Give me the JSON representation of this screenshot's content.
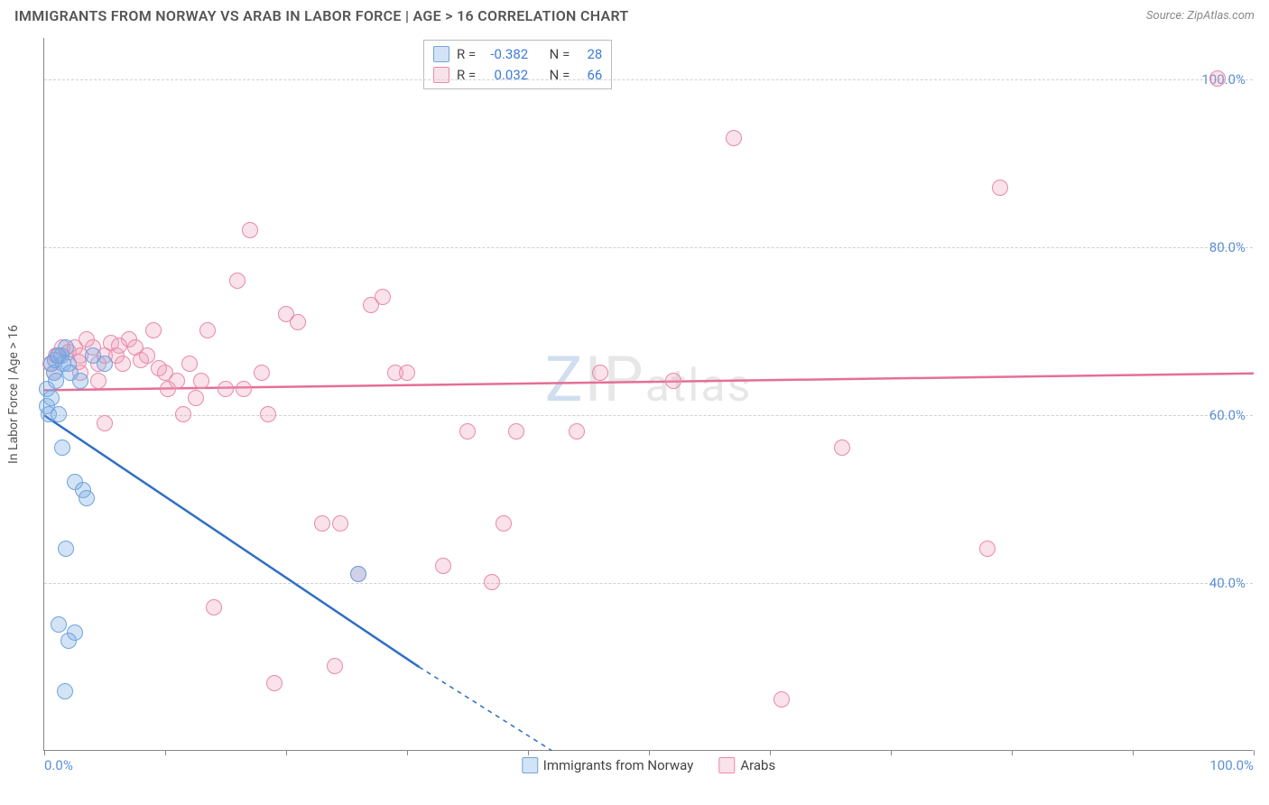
{
  "header": {
    "title": "IMMIGRANTS FROM NORWAY VS ARAB IN LABOR FORCE | AGE > 16 CORRELATION CHART",
    "source": "Source: ZipAtlas.com"
  },
  "chart": {
    "type": "scatter",
    "ylabel": "In Labor Force | Age > 16",
    "background_color": "#ffffff",
    "grid_color": "#d0d0d0",
    "axis_color": "#888888",
    "tick_label_color": "#5b8fd6",
    "tick_fontsize": 15,
    "ylabel_fontsize": 14,
    "ylabel_color": "#555555",
    "xlim": [
      0,
      100
    ],
    "ylim": [
      20,
      105
    ],
    "yticks": [
      40,
      60,
      80,
      100
    ],
    "ytick_labels": [
      "40.0%",
      "60.0%",
      "80.0%",
      "100.0%"
    ],
    "xticks": [
      0,
      10,
      20,
      30,
      40,
      50,
      60,
      70,
      80,
      90,
      100
    ],
    "xtick_labels_shown": {
      "0": "0.0%",
      "100": "100.0%"
    },
    "marker_radius": 9,
    "marker_border_width": 1.5,
    "trend_line_width": 2.5,
    "watermark_text": "ZIPatlas",
    "watermark_z_color": "rgba(120,160,210,0.35)",
    "watermark_rest_color": "rgba(120,120,120,0.18)",
    "watermark_fontsize": 70
  },
  "series": [
    {
      "id": "norway",
      "label": "Immigrants from Norway",
      "fill_color": "rgba(130,175,230,0.35)",
      "border_color": "#6fa3dd",
      "trend_color": "#2f6fc4",
      "R": "-0.382",
      "N": "28",
      "trend": {
        "x1": 0,
        "y1": 60,
        "x2": 31,
        "y2": 30,
        "dash_x2": 42,
        "dash_y2": 20
      },
      "points": [
        [
          0.2,
          61
        ],
        [
          0.2,
          63
        ],
        [
          0.4,
          60
        ],
        [
          0.6,
          62
        ],
        [
          0.6,
          66
        ],
        [
          0.8,
          65
        ],
        [
          1,
          64
        ],
        [
          1.2,
          60
        ],
        [
          1.4,
          67
        ],
        [
          1.6,
          66
        ],
        [
          1.8,
          68
        ],
        [
          2,
          66
        ],
        [
          1.5,
          56
        ],
        [
          1.8,
          44
        ],
        [
          2.5,
          52
        ],
        [
          3.2,
          51
        ],
        [
          3.5,
          50
        ],
        [
          1.2,
          35
        ],
        [
          2.5,
          34
        ],
        [
          2.0,
          33
        ],
        [
          1.7,
          27
        ],
        [
          0.9,
          66.5
        ],
        [
          1.1,
          67
        ],
        [
          2.2,
          65
        ],
        [
          3,
          64
        ],
        [
          4,
          67
        ],
        [
          5,
          66
        ],
        [
          26,
          41
        ]
      ]
    },
    {
      "id": "arabs",
      "label": "Arabs",
      "fill_color": "rgba(240,160,185,0.30)",
      "border_color": "#e88aa8",
      "trend_color": "#e56f95",
      "R": "0.032",
      "N": "66",
      "trend": {
        "x1": 0,
        "y1": 63,
        "x2": 100,
        "y2": 65
      },
      "points": [
        [
          0.5,
          66
        ],
        [
          1,
          67
        ],
        [
          1.5,
          68
        ],
        [
          2,
          67.5
        ],
        [
          2.5,
          68
        ],
        [
          3,
          67
        ],
        [
          3.5,
          69
        ],
        [
          4,
          68
        ],
        [
          4.5,
          66
        ],
        [
          5,
          67
        ],
        [
          5.5,
          68.5
        ],
        [
          6,
          67
        ],
        [
          6.5,
          66
        ],
        [
          7,
          69
        ],
        [
          7.5,
          68
        ],
        [
          8,
          66.5
        ],
        [
          9,
          70
        ],
        [
          10,
          65
        ],
        [
          11,
          64
        ],
        [
          12,
          66
        ],
        [
          13,
          64
        ],
        [
          15,
          63
        ],
        [
          11.5,
          60
        ],
        [
          16,
          76
        ],
        [
          17,
          82
        ],
        [
          18,
          65
        ],
        [
          5,
          59
        ],
        [
          14,
          37
        ],
        [
          20,
          72
        ],
        [
          21,
          71
        ],
        [
          23,
          47
        ],
        [
          24,
          30
        ],
        [
          26,
          41
        ],
        [
          27,
          73
        ],
        [
          28,
          74
        ],
        [
          29,
          65
        ],
        [
          30,
          65
        ],
        [
          33,
          42
        ],
        [
          35,
          58
        ],
        [
          37,
          40
        ],
        [
          38,
          47
        ],
        [
          39,
          58
        ],
        [
          44,
          58
        ],
        [
          46,
          65
        ],
        [
          52,
          64
        ],
        [
          57,
          93
        ],
        [
          61,
          26
        ],
        [
          66,
          56
        ],
        [
          79,
          87
        ],
        [
          78,
          44
        ],
        [
          97,
          100
        ],
        [
          3,
          65
        ],
        [
          4.5,
          64
        ],
        [
          6.2,
          68.2
        ],
        [
          2.8,
          66.3
        ],
        [
          8.5,
          67
        ],
        [
          9.5,
          65.5
        ],
        [
          10.2,
          63
        ],
        [
          12.5,
          62
        ],
        [
          16.5,
          63
        ],
        [
          18.5,
          60
        ],
        [
          19,
          28
        ],
        [
          24.5,
          47
        ],
        [
          13.5,
          70
        ],
        [
          0.8,
          65
        ],
        [
          1.2,
          67
        ]
      ]
    }
  ],
  "legend_top": {
    "r_label": "R =",
    "n_label": "N ="
  }
}
